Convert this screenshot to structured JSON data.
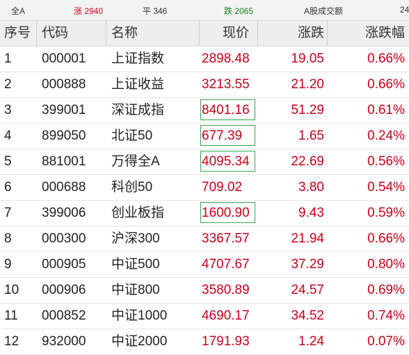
{
  "topbar": {
    "all": "全A",
    "rise": "涨 2940",
    "flat": "平 346",
    "fall": "跌 2065",
    "volume": "A股成交额",
    "extra": "24"
  },
  "header": {
    "idx": "序号",
    "code": "代码",
    "name": "名称",
    "price": "现价",
    "change": "涨跌",
    "pct": "涨跌幅"
  },
  "rows": [
    {
      "idx": "1",
      "code": "000001",
      "name": "上证指数",
      "price": "2898.48",
      "change": "19.05",
      "pct": "0.66%",
      "boxed": false
    },
    {
      "idx": "2",
      "code": "000888",
      "name": "上证收益",
      "price": "3213.55",
      "change": "21.20",
      "pct": "0.66%",
      "boxed": false
    },
    {
      "idx": "3",
      "code": "399001",
      "name": "深证成指",
      "price": "8401.16",
      "change": "51.29",
      "pct": "0.61%",
      "boxed": true
    },
    {
      "idx": "4",
      "code": "899050",
      "name": "北证50",
      "price": "677.39",
      "change": "1.65",
      "pct": "0.24%",
      "boxed": true
    },
    {
      "idx": "5",
      "code": "881001",
      "name": "万得全A",
      "price": "4095.34",
      "change": "22.69",
      "pct": "0.56%",
      "boxed": true
    },
    {
      "idx": "6",
      "code": "000688",
      "name": "科创50",
      "price": "709.02",
      "change": "3.80",
      "pct": "0.54%",
      "boxed": false
    },
    {
      "idx": "7",
      "code": "399006",
      "name": "创业板指",
      "price": "1600.90",
      "change": "9.43",
      "pct": "0.59%",
      "boxed": true
    },
    {
      "idx": "8",
      "code": "000300",
      "name": "沪深300",
      "price": "3367.57",
      "change": "21.94",
      "pct": "0.66%",
      "boxed": false
    },
    {
      "idx": "9",
      "code": "000905",
      "name": "中证500",
      "price": "4707.67",
      "change": "37.29",
      "pct": "0.80%",
      "boxed": false
    },
    {
      "idx": "10",
      "code": "000906",
      "name": "中证800",
      "price": "3580.89",
      "change": "24.57",
      "pct": "0.69%",
      "boxed": false
    },
    {
      "idx": "11",
      "code": "000852",
      "name": "中证1000",
      "price": "4690.17",
      "change": "34.52",
      "pct": "0.74%",
      "boxed": false
    },
    {
      "idx": "12",
      "code": "932000",
      "name": "中证2000",
      "price": "1791.93",
      "change": "1.24",
      "pct": "0.07%",
      "boxed": false
    }
  ],
  "colors": {
    "up": "#c8001a",
    "down": "#1a7f1a",
    "box": "#3aa34a"
  }
}
